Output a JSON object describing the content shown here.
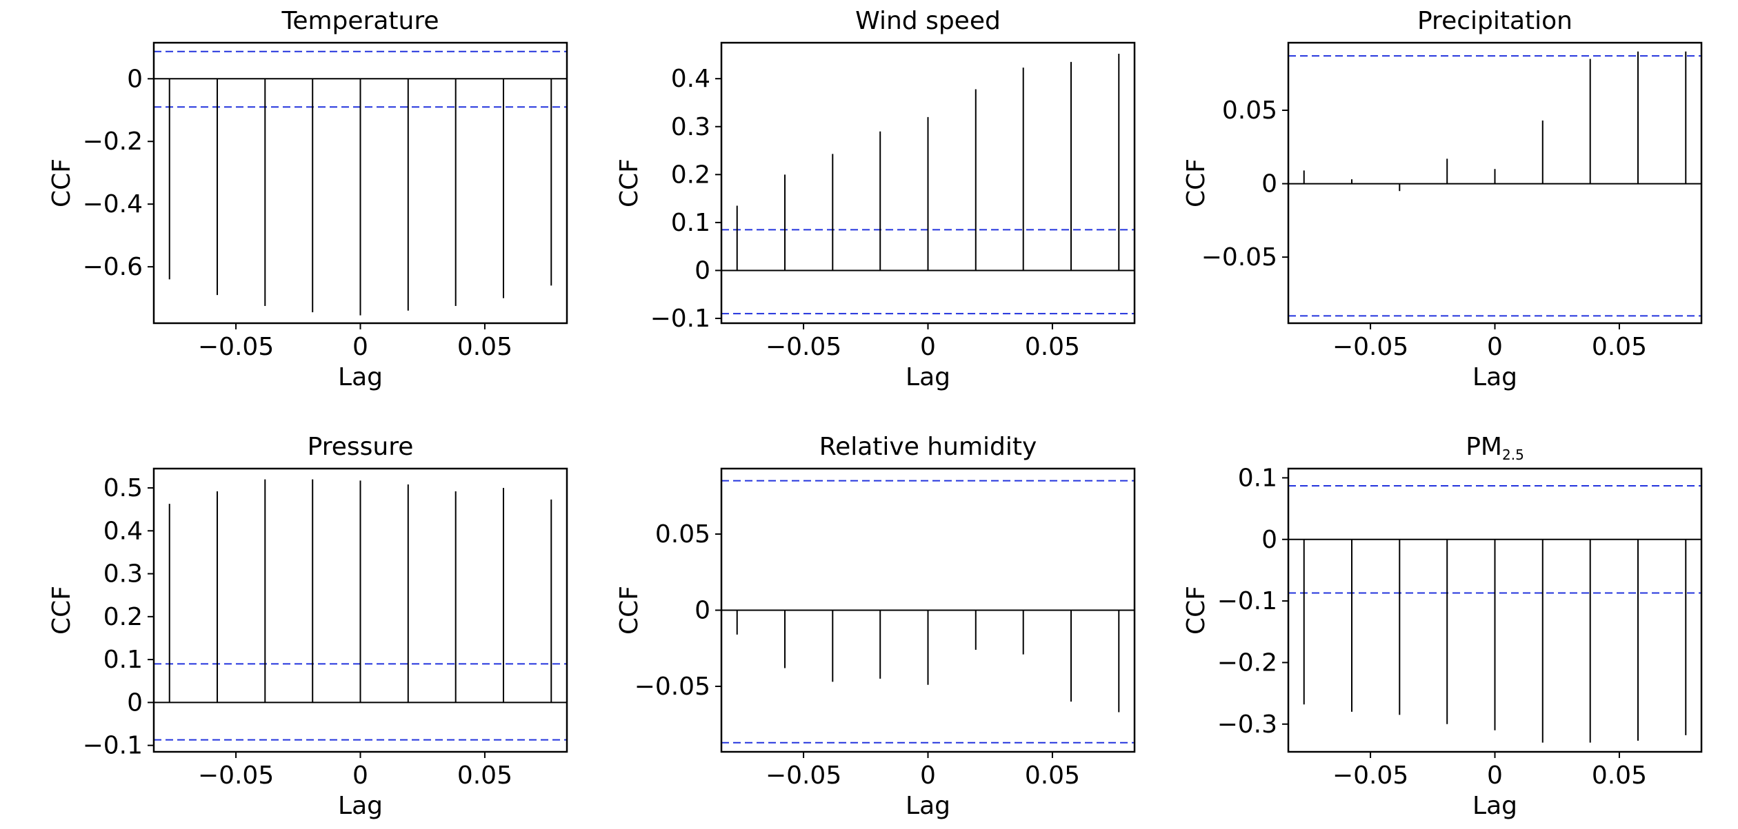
{
  "chart_data": [
    {
      "type": "bar",
      "title": "Temperature",
      "xlabel": "Lag",
      "ylabel": "CCF",
      "xlim": [
        -0.083,
        0.083
      ],
      "ylim": [
        -0.78,
        0.115
      ],
      "xticks": [
        -0.05,
        0,
        0.05
      ],
      "xtick_labels": [
        "−0.05",
        "0",
        "0.05"
      ],
      "yticks": [
        0,
        -0.2,
        -0.4,
        -0.6
      ],
      "ytick_labels": [
        "0",
        "−0.2",
        "−0.4",
        "−0.6"
      ],
      "ci": [
        0.087,
        -0.09
      ],
      "x": [
        -0.0767,
        -0.0575,
        -0.0383,
        -0.0192,
        0,
        0.0192,
        0.0383,
        0.0575,
        0.0767
      ],
      "values": [
        -0.64,
        -0.69,
        -0.725,
        -0.745,
        -0.755,
        -0.74,
        -0.725,
        -0.7,
        -0.66
      ]
    },
    {
      "type": "bar",
      "title": "Wind speed",
      "xlabel": "Lag",
      "ylabel": "CCF",
      "xlim": [
        -0.083,
        0.083
      ],
      "ylim": [
        -0.11,
        0.475
      ],
      "xticks": [
        -0.05,
        0,
        0.05
      ],
      "xtick_labels": [
        "−0.05",
        "0",
        "0.05"
      ],
      "yticks": [
        -0.1,
        0,
        0.1,
        0.2,
        0.3,
        0.4
      ],
      "ytick_labels": [
        "−0.1",
        "0",
        "0.1",
        "0.2",
        "0.3",
        "0.4"
      ],
      "ci": [
        0.085,
        -0.09
      ],
      "x": [
        -0.0767,
        -0.0575,
        -0.0383,
        -0.0192,
        0,
        0.0192,
        0.0383,
        0.0575,
        0.0767
      ],
      "values": [
        0.135,
        0.2,
        0.243,
        0.29,
        0.32,
        0.378,
        0.423,
        0.435,
        0.452
      ]
    },
    {
      "type": "bar",
      "title": "Precipitation",
      "xlabel": "Lag",
      "ylabel": "CCF",
      "xlim": [
        -0.083,
        0.083
      ],
      "ylim": [
        -0.095,
        0.096
      ],
      "xticks": [
        -0.05,
        0,
        0.05
      ],
      "xtick_labels": [
        "−0.05",
        "0",
        "0.05"
      ],
      "yticks": [
        0.05,
        0,
        -0.05
      ],
      "ytick_labels": [
        "0.05",
        "0",
        "−0.05"
      ],
      "ci": [
        0.087,
        -0.09
      ],
      "x": [
        -0.0767,
        -0.0575,
        -0.0383,
        -0.0192,
        0,
        0.0192,
        0.0383,
        0.0575,
        0.0767
      ],
      "values": [
        0.009,
        0.003,
        -0.005,
        0.017,
        0.01,
        0.043,
        0.085,
        0.09,
        0.09
      ]
    },
    {
      "type": "bar",
      "title": "Pressure",
      "xlabel": "Lag",
      "ylabel": "CCF",
      "xlim": [
        -0.083,
        0.083
      ],
      "ylim": [
        -0.115,
        0.545
      ],
      "xticks": [
        -0.05,
        0,
        0.05
      ],
      "xtick_labels": [
        "−0.05",
        "0",
        "0.05"
      ],
      "yticks": [
        0.5,
        0.4,
        0.3,
        0.2,
        0.1,
        0,
        -0.1
      ],
      "ytick_labels": [
        "0.5",
        "0.4",
        "0.3",
        "0.2",
        "0.1",
        "0",
        "−0.1"
      ],
      "ci": [
        0.09,
        -0.087
      ],
      "x": [
        -0.0767,
        -0.0575,
        -0.0383,
        -0.0192,
        0,
        0.0192,
        0.0383,
        0.0575,
        0.0767
      ],
      "values": [
        0.463,
        0.492,
        0.52,
        0.52,
        0.517,
        0.508,
        0.492,
        0.5,
        0.473
      ]
    },
    {
      "type": "bar",
      "title": "Relative humidity",
      "xlabel": "Lag",
      "ylabel": "CCF",
      "xlim": [
        -0.083,
        0.083
      ],
      "ylim": [
        -0.093,
        0.093
      ],
      "xticks": [
        -0.05,
        0,
        0.05
      ],
      "xtick_labels": [
        "−0.05",
        "0",
        "0.05"
      ],
      "yticks": [
        0.05,
        0,
        -0.05
      ],
      "ytick_labels": [
        "0.05",
        "0",
        "−0.05"
      ],
      "ci": [
        0.085,
        -0.087
      ],
      "x": [
        -0.0767,
        -0.0575,
        -0.0383,
        -0.0192,
        0,
        0.0192,
        0.0383,
        0.0575,
        0.0767
      ],
      "values": [
        -0.016,
        -0.038,
        -0.047,
        -0.045,
        -0.049,
        -0.026,
        -0.029,
        -0.06,
        -0.067
      ]
    },
    {
      "type": "bar",
      "title": "PM",
      "title_subscript": "2.5",
      "xlabel": "Lag",
      "ylabel": "CCF",
      "xlim": [
        -0.083,
        0.083
      ],
      "ylim": [
        -0.345,
        0.115
      ],
      "xticks": [
        -0.05,
        0,
        0.05
      ],
      "xtick_labels": [
        "−0.05",
        "0",
        "0.05"
      ],
      "yticks": [
        0.1,
        0,
        -0.1,
        -0.2,
        -0.3
      ],
      "ytick_labels": [
        "0.1",
        "0",
        "−0.1",
        "−0.2",
        "−0.3"
      ],
      "ci": [
        0.087,
        -0.087
      ],
      "x": [
        -0.0767,
        -0.0575,
        -0.0383,
        -0.0192,
        0,
        0.0192,
        0.0383,
        0.0575,
        0.0767
      ],
      "values": [
        -0.268,
        -0.28,
        -0.285,
        -0.3,
        -0.31,
        -0.33,
        -0.33,
        -0.327,
        -0.318
      ]
    }
  ]
}
